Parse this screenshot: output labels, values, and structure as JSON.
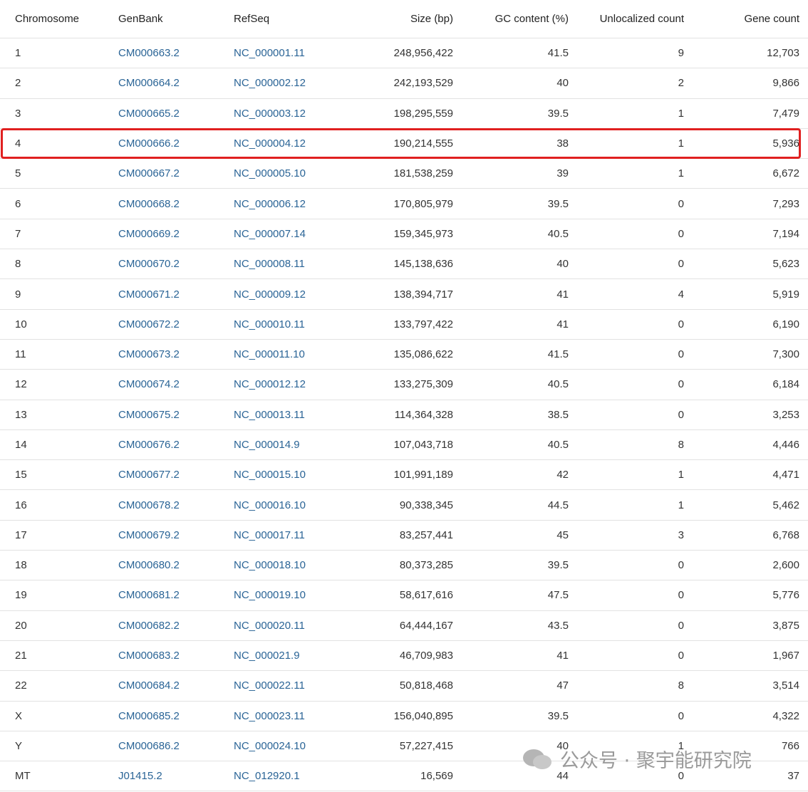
{
  "table": {
    "columns": [
      "Chromosome",
      "GenBank",
      "RefSeq",
      "Size (bp)",
      "GC content (%)",
      "Unlocalized count",
      "Gene count"
    ],
    "rows": [
      [
        "1",
        "CM000663.2",
        "NC_000001.11",
        "248,956,422",
        "41.5",
        "9",
        "12,703"
      ],
      [
        "2",
        "CM000664.2",
        "NC_000002.12",
        "242,193,529",
        "40",
        "2",
        "9,866"
      ],
      [
        "3",
        "CM000665.2",
        "NC_000003.12",
        "198,295,559",
        "39.5",
        "1",
        "7,479"
      ],
      [
        "4",
        "CM000666.2",
        "NC_000004.12",
        "190,214,555",
        "38",
        "1",
        "5,936"
      ],
      [
        "5",
        "CM000667.2",
        "NC_000005.10",
        "181,538,259",
        "39",
        "1",
        "6,672"
      ],
      [
        "6",
        "CM000668.2",
        "NC_000006.12",
        "170,805,979",
        "39.5",
        "0",
        "7,293"
      ],
      [
        "7",
        "CM000669.2",
        "NC_000007.14",
        "159,345,973",
        "40.5",
        "0",
        "7,194"
      ],
      [
        "8",
        "CM000670.2",
        "NC_000008.11",
        "145,138,636",
        "40",
        "0",
        "5,623"
      ],
      [
        "9",
        "CM000671.2",
        "NC_000009.12",
        "138,394,717",
        "41",
        "4",
        "5,919"
      ],
      [
        "10",
        "CM000672.2",
        "NC_000010.11",
        "133,797,422",
        "41",
        "0",
        "6,190"
      ],
      [
        "11",
        "CM000673.2",
        "NC_000011.10",
        "135,086,622",
        "41.5",
        "0",
        "7,300"
      ],
      [
        "12",
        "CM000674.2",
        "NC_000012.12",
        "133,275,309",
        "40.5",
        "0",
        "6,184"
      ],
      [
        "13",
        "CM000675.2",
        "NC_000013.11",
        "114,364,328",
        "38.5",
        "0",
        "3,253"
      ],
      [
        "14",
        "CM000676.2",
        "NC_000014.9",
        "107,043,718",
        "40.5",
        "8",
        "4,446"
      ],
      [
        "15",
        "CM000677.2",
        "NC_000015.10",
        "101,991,189",
        "42",
        "1",
        "4,471"
      ],
      [
        "16",
        "CM000678.2",
        "NC_000016.10",
        "90,338,345",
        "44.5",
        "1",
        "5,462"
      ],
      [
        "17",
        "CM000679.2",
        "NC_000017.11",
        "83,257,441",
        "45",
        "3",
        "6,768"
      ],
      [
        "18",
        "CM000680.2",
        "NC_000018.10",
        "80,373,285",
        "39.5",
        "0",
        "2,600"
      ],
      [
        "19",
        "CM000681.2",
        "NC_000019.10",
        "58,617,616",
        "47.5",
        "0",
        "5,776"
      ],
      [
        "20",
        "CM000682.2",
        "NC_000020.11",
        "64,444,167",
        "43.5",
        "0",
        "3,875"
      ],
      [
        "21",
        "CM000683.2",
        "NC_000021.9",
        "46,709,983",
        "41",
        "0",
        "1,967"
      ],
      [
        "22",
        "CM000684.2",
        "NC_000022.11",
        "50,818,468",
        "47",
        "8",
        "3,514"
      ],
      [
        "X",
        "CM000685.2",
        "NC_000023.11",
        "156,040,895",
        "39.5",
        "0",
        "4,322"
      ],
      [
        "Y",
        "CM000686.2",
        "NC_000024.10",
        "57,227,415",
        "40",
        "1",
        "766"
      ],
      [
        "MT",
        "J01415.2",
        "NC_012920.1",
        "16,569",
        "44",
        "0",
        "37"
      ]
    ]
  },
  "watermark": "公众号 · 聚宇能研究院"
}
